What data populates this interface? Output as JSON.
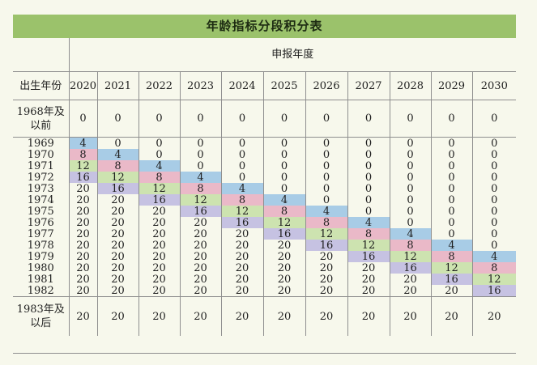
{
  "title": "年龄指标分段积分表",
  "header": {
    "birth_year_label": "出生年份",
    "annual_label": "申报年度",
    "years": [
      "2020",
      "2021",
      "2022",
      "2023",
      "2024",
      "2025",
      "2026",
      "2027",
      "2028",
      "2029",
      "2030"
    ]
  },
  "rows": [
    {
      "label": "1968年及以前",
      "values": [
        "0",
        "0",
        "0",
        "0",
        "0",
        "0",
        "0",
        "0",
        "0",
        "0",
        "0"
      ],
      "colors": [
        null,
        null,
        null,
        null,
        null,
        null,
        null,
        null,
        null,
        null,
        null
      ]
    },
    {
      "label": "1969",
      "values": [
        "4",
        "0",
        "0",
        "0",
        "0",
        "0",
        "0",
        "0",
        "0",
        "0",
        "0"
      ],
      "colors": [
        "blue",
        null,
        null,
        null,
        null,
        null,
        null,
        null,
        null,
        null,
        null
      ]
    },
    {
      "label": "1970",
      "values": [
        "8",
        "4",
        "0",
        "0",
        "0",
        "0",
        "0",
        "0",
        "0",
        "0",
        "0"
      ],
      "colors": [
        "pink",
        "blue",
        null,
        null,
        null,
        null,
        null,
        null,
        null,
        null,
        null
      ]
    },
    {
      "label": "1971",
      "values": [
        "12",
        "8",
        "4",
        "0",
        "0",
        "0",
        "0",
        "0",
        "0",
        "0",
        "0"
      ],
      "colors": [
        "green",
        "pink",
        "blue",
        null,
        null,
        null,
        null,
        null,
        null,
        null,
        null
      ]
    },
    {
      "label": "1972",
      "values": [
        "16",
        "12",
        "8",
        "4",
        "0",
        "0",
        "0",
        "0",
        "0",
        "0",
        "0"
      ],
      "colors": [
        "lav",
        "green",
        "pink",
        "blue",
        null,
        null,
        null,
        null,
        null,
        null,
        null
      ]
    },
    {
      "label": "1973",
      "values": [
        "20",
        "16",
        "12",
        "8",
        "4",
        "0",
        "0",
        "0",
        "0",
        "0",
        "0"
      ],
      "colors": [
        null,
        "lav",
        "green",
        "pink",
        "blue",
        null,
        null,
        null,
        null,
        null,
        null
      ]
    },
    {
      "label": "1974",
      "values": [
        "20",
        "20",
        "16",
        "12",
        "8",
        "4",
        "0",
        "0",
        "0",
        "0",
        "0"
      ],
      "colors": [
        null,
        null,
        "lav",
        "green",
        "pink",
        "blue",
        null,
        null,
        null,
        null,
        null
      ]
    },
    {
      "label": "1975",
      "values": [
        "20",
        "20",
        "20",
        "16",
        "12",
        "8",
        "4",
        "0",
        "0",
        "0",
        "0"
      ],
      "colors": [
        null,
        null,
        null,
        "lav",
        "green",
        "pink",
        "blue",
        null,
        null,
        null,
        null
      ]
    },
    {
      "label": "1976",
      "values": [
        "20",
        "20",
        "20",
        "20",
        "16",
        "12",
        "8",
        "4",
        "0",
        "0",
        "0"
      ],
      "colors": [
        null,
        null,
        null,
        null,
        "lav",
        "green",
        "pink",
        "blue",
        null,
        null,
        null
      ]
    },
    {
      "label": "1977",
      "values": [
        "20",
        "20",
        "20",
        "20",
        "20",
        "16",
        "12",
        "8",
        "4",
        "0",
        "0"
      ],
      "colors": [
        null,
        null,
        null,
        null,
        null,
        "lav",
        "green",
        "pink",
        "blue",
        null,
        null
      ]
    },
    {
      "label": "1978",
      "values": [
        "20",
        "20",
        "20",
        "20",
        "20",
        "20",
        "16",
        "12",
        "8",
        "4",
        "0"
      ],
      "colors": [
        null,
        null,
        null,
        null,
        null,
        null,
        "lav",
        "green",
        "pink",
        "blue",
        null
      ]
    },
    {
      "label": "1979",
      "values": [
        "20",
        "20",
        "20",
        "20",
        "20",
        "20",
        "20",
        "16",
        "12",
        "8",
        "4"
      ],
      "colors": [
        null,
        null,
        null,
        null,
        null,
        null,
        null,
        "lav",
        "green",
        "pink",
        "blue"
      ]
    },
    {
      "label": "1980",
      "values": [
        "20",
        "20",
        "20",
        "20",
        "20",
        "20",
        "20",
        "20",
        "16",
        "12",
        "8"
      ],
      "colors": [
        null,
        null,
        null,
        null,
        null,
        null,
        null,
        null,
        "lav",
        "green",
        "pink"
      ]
    },
    {
      "label": "1981",
      "values": [
        "20",
        "20",
        "20",
        "20",
        "20",
        "20",
        "20",
        "20",
        "20",
        "16",
        "12"
      ],
      "colors": [
        null,
        null,
        null,
        null,
        null,
        null,
        null,
        null,
        null,
        "lav",
        "green"
      ]
    },
    {
      "label": "1982",
      "values": [
        "20",
        "20",
        "20",
        "20",
        "20",
        "20",
        "20",
        "20",
        "20",
        "20",
        "16"
      ],
      "colors": [
        null,
        null,
        null,
        null,
        null,
        null,
        null,
        null,
        null,
        null,
        "lav"
      ]
    },
    {
      "label": "1983年及以后",
      "values": [
        "20",
        "20",
        "20",
        "20",
        "20",
        "20",
        "20",
        "20",
        "20",
        "20",
        "20"
      ],
      "colors": [
        null,
        null,
        null,
        null,
        null,
        null,
        null,
        null,
        null,
        null,
        null
      ]
    }
  ],
  "palette": {
    "title_bg": "#9bc26b",
    "blue": "#a8cce6",
    "pink": "#eab9c8",
    "green": "#cde3b0",
    "lav": "#c6c2e2",
    "background": "#f7f8ec"
  }
}
